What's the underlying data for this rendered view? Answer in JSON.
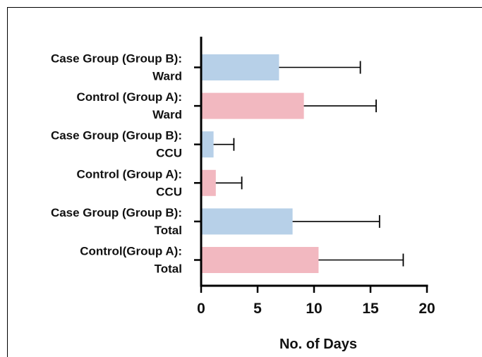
{
  "chart_data": {
    "type": "bar",
    "orientation": "horizontal",
    "title": "",
    "xlabel": "No. of Days",
    "ylabel": "",
    "xlim": [
      0,
      20
    ],
    "xticks": [
      "0",
      "5",
      "10",
      "15",
      "20"
    ],
    "grid": false,
    "categories": [
      {
        "line1": "Case Group (Group B):",
        "line2": "Ward",
        "value": 6.9,
        "error": 7.2,
        "group": "B"
      },
      {
        "line1": "Control (Group A):",
        "line2": "Ward",
        "value": 9.1,
        "error": 6.4,
        "group": "A"
      },
      {
        "line1": "Case Group (Group B):",
        "line2": "CCU",
        "value": 1.1,
        "error": 1.8,
        "group": "B"
      },
      {
        "line1": "Control (Group A):",
        "line2": "CCU",
        "value": 1.3,
        "error": 2.3,
        "group": "A"
      },
      {
        "line1": "Case Group (Group B):",
        "line2": "Total",
        "value": 8.1,
        "error": 7.7,
        "group": "B"
      },
      {
        "line1": "Control(Group A):",
        "line2": "Total",
        "value": 10.4,
        "error": 7.5,
        "group": "A"
      }
    ],
    "colors": {
      "A": "#f2b8c0",
      "B": "#b7d0e8",
      "error_bar": "#000000",
      "axis": "#000000"
    }
  }
}
